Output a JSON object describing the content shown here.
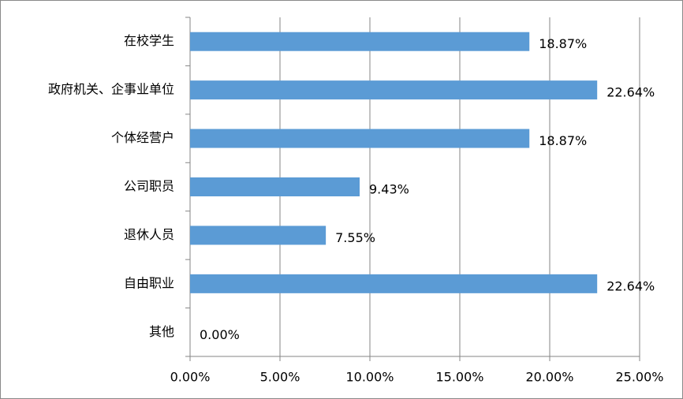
{
  "chart_data": {
    "type": "hbar",
    "categories": [
      "在校学生",
      "政府机关、企事业单位",
      "个体经营户",
      "公司职员",
      "退休人员",
      "自由职业",
      "其他"
    ],
    "values": [
      18.87,
      22.64,
      18.87,
      9.43,
      7.55,
      22.64,
      0
    ],
    "value_labels": [
      "18.87%",
      "22.64%",
      "18.87%",
      "9.43%",
      "7.55%",
      "22.64%",
      "0.00%"
    ],
    "color": "#5b9bd5",
    "xlim": [
      0,
      25
    ],
    "xticks": [
      {
        "value": 0,
        "label": "0.00%"
      },
      {
        "value": 5,
        "label": "5.00%"
      },
      {
        "value": 10,
        "label": "10.00%"
      },
      {
        "value": 15,
        "label": "15.00%"
      },
      {
        "value": 20,
        "label": "20.00%"
      },
      {
        "value": 25,
        "label": "25.00%"
      }
    ],
    "grid": true
  }
}
